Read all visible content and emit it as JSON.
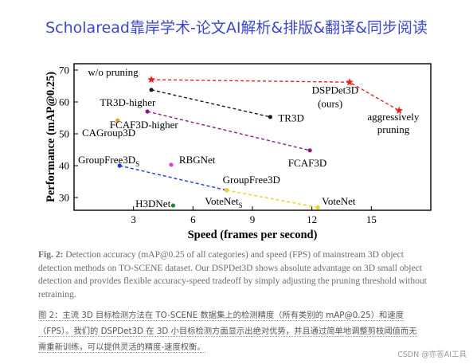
{
  "banner": "Scholaread靠岸学术-论文AI解析&排版&翻译&同步阅读",
  "chart_data": {
    "type": "scatter",
    "xlabel": "Speed (frames per second)",
    "ylabel": "Performance (mAP@0.25)",
    "xlim": [
      0,
      18
    ],
    "ylim": [
      26,
      72
    ],
    "xticks": [
      "3",
      "6",
      "9",
      "12",
      "15"
    ],
    "yticks": [
      "30",
      "40",
      "50",
      "60",
      "70"
    ],
    "xtick_values": [
      3,
      6,
      9,
      12,
      15
    ],
    "ytick_values": [
      30,
      40,
      50,
      60,
      70
    ],
    "grid": false,
    "points": [
      {
        "label": "CAGroup3D",
        "x": 2.2,
        "y": 54.2,
        "color": "#f0a020"
      },
      {
        "label": "H3DNet",
        "x": 5.0,
        "y": 27.5,
        "color": "#1a8a3a"
      },
      {
        "label": "RBGNet",
        "x": 4.9,
        "y": 40.3,
        "color": "#e040d0"
      }
    ],
    "series": [
      {
        "color": "#e82020",
        "style": "dashed",
        "marker": "star",
        "points": [
          {
            "x": 3.9,
            "y": 67.0
          },
          {
            "x": 13.9,
            "y": 66.2
          },
          {
            "x": 16.4,
            "y": 57.3
          }
        ]
      },
      {
        "color": "#1a1a1a",
        "style": "dashed",
        "marker": "circle",
        "points": [
          {
            "x": 3.9,
            "y": 63.8
          },
          {
            "x": 9.9,
            "y": 55.3
          }
        ]
      },
      {
        "color": "#8a1a8a",
        "style": "dashed",
        "marker": "circle",
        "points": [
          {
            "x": 3.7,
            "y": 57.0
          },
          {
            "x": 11.9,
            "y": 44.8
          }
        ]
      },
      {
        "color": "#1a3ad0",
        "style": "dashed",
        "marker": "circle",
        "points": [
          {
            "x": 2.3,
            "y": 40.0
          },
          {
            "x": 7.7,
            "y": 32.3
          }
        ]
      },
      {
        "color": "#f0d020",
        "style": "dashed",
        "marker": "circle",
        "points": [
          {
            "x": 7.7,
            "y": 32.3
          },
          {
            "x": 12.3,
            "y": 26.9
          }
        ]
      }
    ],
    "annotations": [
      {
        "text": "w/o pruning",
        "x": 0.7,
        "y": 68.3
      },
      {
        "text": "DSPDet3D",
        "x": 12.0,
        "y": 62.6
      },
      {
        "text": "(ours)",
        "x": 12.3,
        "y": 58.4
      },
      {
        "text": "aggressively",
        "x": 14.8,
        "y": 54.2
      },
      {
        "text": "pruning",
        "x": 15.3,
        "y": 50.2
      },
      {
        "text": "TR3D-higher",
        "x": 1.3,
        "y": 58.8
      },
      {
        "text": "TR3D",
        "x": 10.3,
        "y": 53.9
      },
      {
        "text": "FCAF3D-higher",
        "x": 1.8,
        "y": 51.8
      },
      {
        "text": "CAGroup3D",
        "x": 0.4,
        "y": 49.3
      },
      {
        "text": "FCAF3D",
        "x": 10.8,
        "y": 39.8
      },
      {
        "text": "GroupFree3D",
        "x": 0.2,
        "y": 40.7
      },
      {
        "text": "RBGNet",
        "x": 5.3,
        "y": 40.8
      },
      {
        "text": "GroupFree3D",
        "x": 7.5,
        "y": 34.5
      },
      {
        "text": "H3DNet",
        "x": 3.1,
        "y": 27.0
      },
      {
        "text": "VoteNet",
        "x": 6.6,
        "y": 27.8
      },
      {
        "text": "VoteNet",
        "x": 12.5,
        "y": 27.8
      }
    ],
    "annotation_subscripts": {
      "10": "S",
      "14": "S"
    }
  },
  "caption_en": {
    "fig": "Fig. 2:",
    "text": " Detection accuracy (mAP@0.25 of all categories) and speed (FPS) of mainstream 3D object detection methods on TO-SCENE dataset. Our DSPDet3D shows absolute advantage on 3D small object detection and provides flexible accuracy-speed tradeoff by simply adjusting the pruning threshold without retraining."
  },
  "caption_zh": [
    "图 2：主流 3D 目标检测方法在 TO-SCENE 数据集上的检测精度（所有类别的 mAP@0.25）和速度",
    "（FPS）。我们的 DSPDet3D 在 3D 小目标检测方面显示出绝对优势，并且通过简单地调整剪枝阈值而无",
    "需重新训练，可以提供灵活的精度-速度权衡。"
  ],
  "watermark": "CSDN @亦答AI工具"
}
